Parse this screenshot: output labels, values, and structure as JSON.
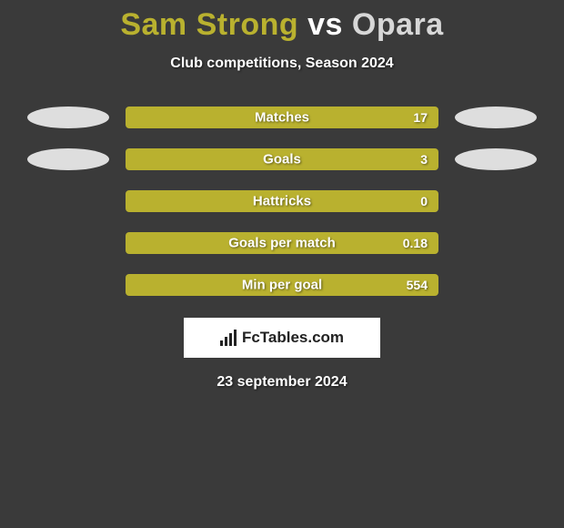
{
  "title": {
    "player1": "Sam Strong",
    "vs": "vs",
    "player2": "Opara",
    "player1_color": "#b9b12f",
    "vs_color": "#ffffff",
    "player2_color": "#d7d7d7"
  },
  "subtitle": "Club competitions, Season 2024",
  "background_color": "#3a3a3a",
  "bar_color": "#b9b12f",
  "ellipse_left_color": "#dedede",
  "ellipse_right_color": "#dedede",
  "text_color": "#ffffff",
  "rows": [
    {
      "label": "Matches",
      "value": "17",
      "left_ellipse": true,
      "right_ellipse": true
    },
    {
      "label": "Goals",
      "value": "3",
      "left_ellipse": true,
      "right_ellipse": true
    },
    {
      "label": "Hattricks",
      "value": "0",
      "left_ellipse": false,
      "right_ellipse": false
    },
    {
      "label": "Goals per match",
      "value": "0.18",
      "left_ellipse": false,
      "right_ellipse": false
    },
    {
      "label": "Min per goal",
      "value": "554",
      "left_ellipse": false,
      "right_ellipse": false
    }
  ],
  "footer": {
    "logo_text": "FcTables.com",
    "date": "23 september 2024"
  }
}
